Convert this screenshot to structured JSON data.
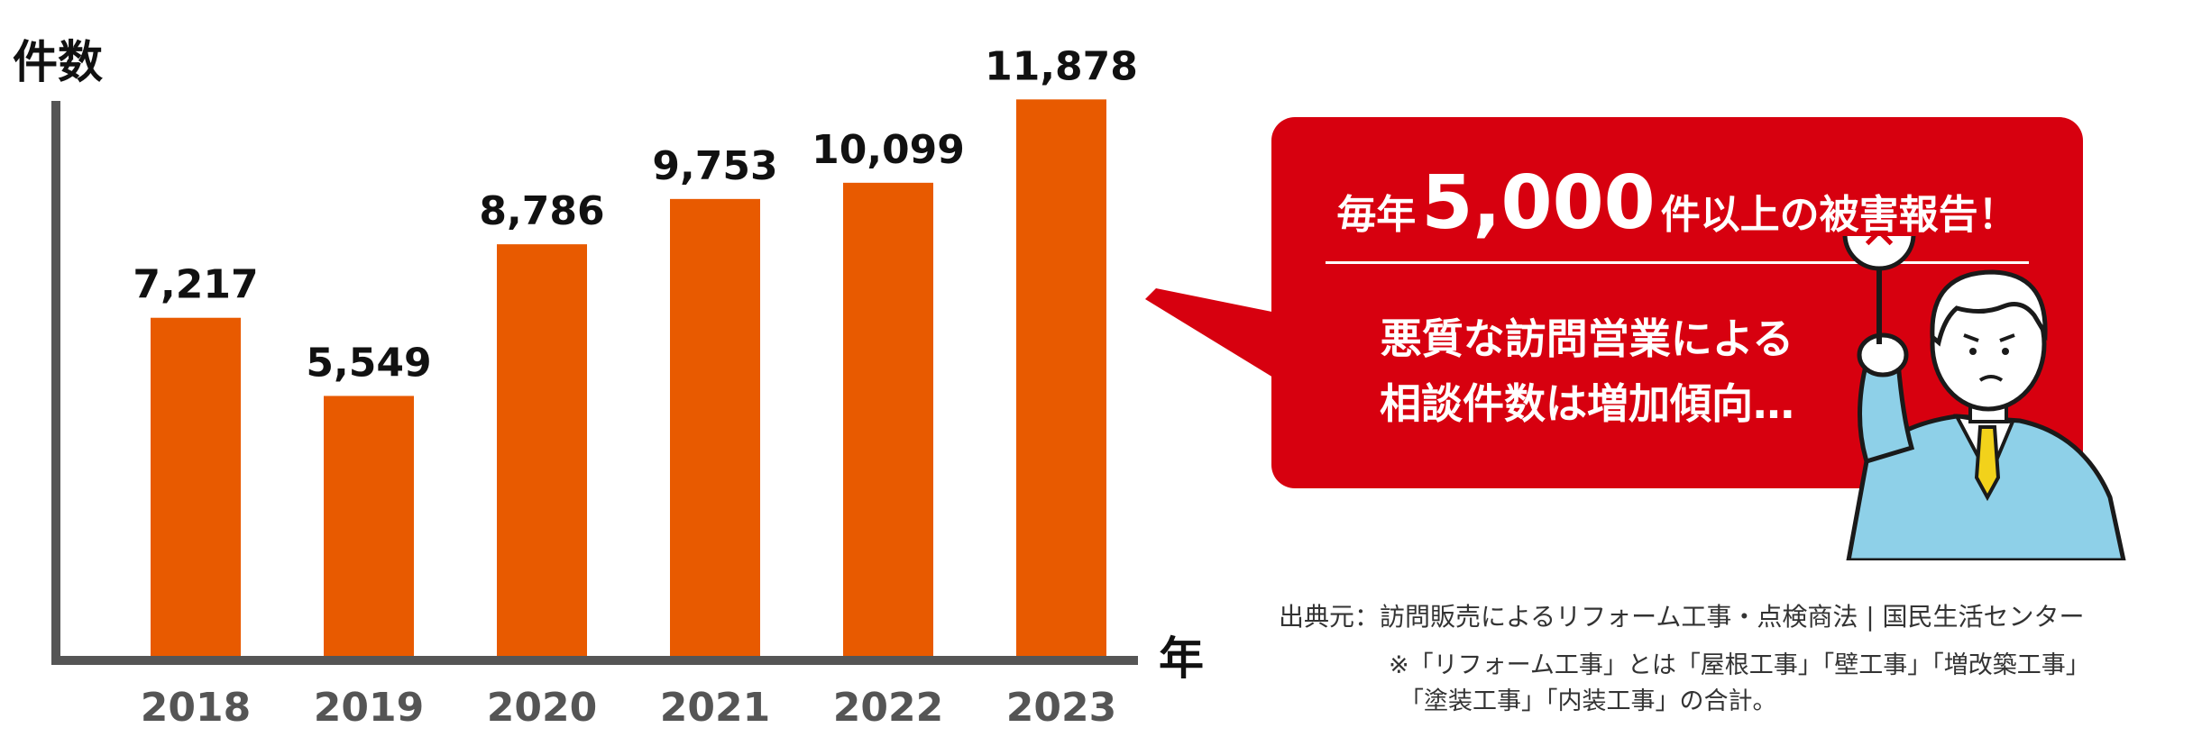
{
  "chart_data": {
    "type": "bar",
    "categories": [
      "2018",
      "2019",
      "2020",
      "2021",
      "2022",
      "2023"
    ],
    "values": [
      7217,
      5549,
      8786,
      9753,
      10099,
      11878
    ],
    "data_labels": [
      "7,217",
      "5,549",
      "8,786",
      "9,753",
      "10,099",
      "11,878"
    ],
    "title": "",
    "xlabel": "年",
    "ylabel": "件数",
    "ylim": [
      0,
      14000
    ],
    "grid": false,
    "bar_color": "#e85a00",
    "axis_color": "#555555"
  },
  "callout": {
    "headline_pre": "毎年",
    "headline_number": "5,000",
    "headline_post": "件以上の被害報告！",
    "line1": "悪質な訪問営業による",
    "line2": "相談件数は増加傾向…",
    "background": "#d7000f"
  },
  "illustration": {
    "icon": "man-holding-x-sign-icon",
    "sign_symbol": "✕"
  },
  "footnote": {
    "source": "出典元：訪問販売によるリフォーム工事・点検商法 | 国民生活センター",
    "note_line1": "※「リフォーム工事」とは「屋根工事」「壁工事」「増改築工事」",
    "note_line2": "「塗装工事」「内装工事」の合計。"
  }
}
